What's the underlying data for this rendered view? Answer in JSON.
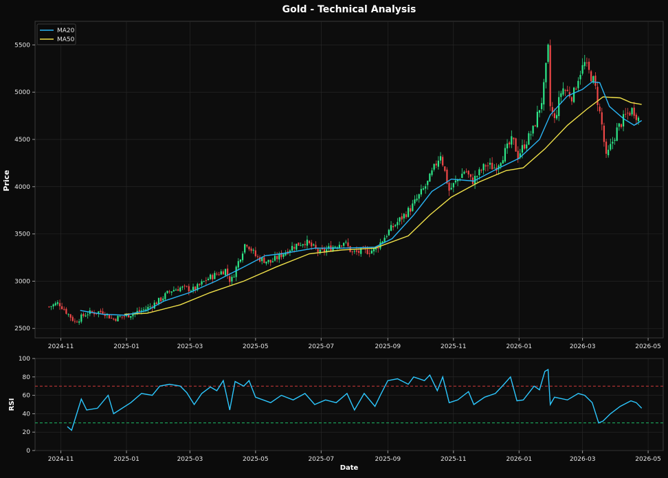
{
  "title": "Gold - Technical Analysis",
  "colors": {
    "background": "#0b0b0b",
    "grid": "#2a2a2a",
    "text": "#e6e6e6",
    "up": "#2ee889",
    "down": "#f04848",
    "ma20": "#29b6f6",
    "ma50": "#f1e24a",
    "rsi": "#2dc8ff",
    "overbought": "#d23a3a",
    "oversold": "#1fbf6a"
  },
  "chart_data": [
    {
      "type": "candlestick",
      "title": "Gold - Technical Analysis",
      "ylabel": "Price",
      "xlabel": "",
      "ylim": [
        2400,
        5750
      ],
      "yticks": [
        2500,
        3000,
        3500,
        4000,
        4500,
        5000,
        5500
      ],
      "xticks": [
        "2024-11",
        "2025-01",
        "2025-03",
        "2025-05",
        "2025-07",
        "2025-09",
        "2025-11",
        "2026-01",
        "2026-03",
        "2026-05"
      ],
      "x_range": [
        "2024-10-08",
        "2026-05-15"
      ],
      "grid": true,
      "legend": {
        "position": "top-left",
        "entries": [
          "MA20",
          "MA50"
        ]
      },
      "price_path": [
        [
          "2024-10-21",
          2730
        ],
        [
          "2024-10-30",
          2770
        ],
        [
          "2024-11-08",
          2650
        ],
        [
          "2024-11-14",
          2570
        ],
        [
          "2024-11-25",
          2660
        ],
        [
          "2024-12-10",
          2680
        ],
        [
          "2024-12-19",
          2600
        ],
        [
          "2025-01-02",
          2640
        ],
        [
          "2025-01-20",
          2710
        ],
        [
          "2025-02-01",
          2800
        ],
        [
          "2025-02-11",
          2900
        ],
        [
          "2025-02-20",
          2930
        ],
        [
          "2025-03-05",
          2910
        ],
        [
          "2025-03-18",
          3030
        ],
        [
          "2025-04-03",
          3120
        ],
        [
          "2025-04-08",
          2990
        ],
        [
          "2025-04-22",
          3420
        ],
        [
          "2025-05-02",
          3250
        ],
        [
          "2025-05-15",
          3200
        ],
        [
          "2025-06-05",
          3370
        ],
        [
          "2025-06-16",
          3420
        ],
        [
          "2025-06-30",
          3300
        ],
        [
          "2025-07-22",
          3420
        ],
        [
          "2025-07-30",
          3300
        ],
        [
          "2025-08-20",
          3330
        ],
        [
          "2025-09-02",
          3530
        ],
        [
          "2025-09-23",
          3780
        ],
        [
          "2025-10-08",
          4040
        ],
        [
          "2025-10-20",
          4350
        ],
        [
          "2025-10-28",
          3960
        ],
        [
          "2025-11-12",
          4180
        ],
        [
          "2025-11-18",
          4050
        ],
        [
          "2025-12-01",
          4230
        ],
        [
          "2025-12-10",
          4200
        ],
        [
          "2025-12-26",
          4500
        ],
        [
          "2025-12-31",
          4330
        ],
        [
          "2026-01-14",
          4600
        ],
        [
          "2026-01-23",
          4950
        ],
        [
          "2026-01-28",
          5450
        ],
        [
          "2026-01-30",
          4850
        ],
        [
          "2026-02-03",
          4700
        ],
        [
          "2026-02-10",
          5050
        ],
        [
          "2026-02-20",
          4950
        ],
        [
          "2026-02-26",
          5200
        ],
        [
          "2026-03-03",
          5300
        ],
        [
          "2026-03-12",
          5100
        ],
        [
          "2026-03-19",
          4650
        ],
        [
          "2026-03-23",
          4300
        ],
        [
          "2026-04-02",
          4600
        ],
        [
          "2026-04-10",
          4750
        ],
        [
          "2026-04-17",
          4820
        ],
        [
          "2026-04-23",
          4700
        ]
      ],
      "ma20": [
        [
          "2024-11-19",
          2690
        ],
        [
          "2024-12-10",
          2650
        ],
        [
          "2024-12-31",
          2640
        ],
        [
          "2025-01-20",
          2690
        ],
        [
          "2025-02-05",
          2790
        ],
        [
          "2025-03-01",
          2880
        ],
        [
          "2025-03-25",
          3000
        ],
        [
          "2025-04-20",
          3150
        ],
        [
          "2025-05-10",
          3270
        ],
        [
          "2025-05-25",
          3290
        ],
        [
          "2025-06-25",
          3350
        ],
        [
          "2025-07-20",
          3350
        ],
        [
          "2025-08-20",
          3360
        ],
        [
          "2025-09-05",
          3450
        ],
        [
          "2025-09-25",
          3700
        ],
        [
          "2025-10-12",
          3950
        ],
        [
          "2025-10-30",
          4080
        ],
        [
          "2025-11-20",
          4060
        ],
        [
          "2025-12-10",
          4180
        ],
        [
          "2026-01-01",
          4300
        ],
        [
          "2026-01-20",
          4500
        ],
        [
          "2026-01-30",
          4760
        ],
        [
          "2026-02-15",
          4960
        ],
        [
          "2026-03-01",
          5030
        ],
        [
          "2026-03-10",
          5110
        ],
        [
          "2026-03-17",
          5100
        ],
        [
          "2026-03-26",
          4850
        ],
        [
          "2026-04-08",
          4720
        ],
        [
          "2026-04-18",
          4650
        ],
        [
          "2026-04-25",
          4700
        ]
      ],
      "ma50": [
        [
          "2024-12-30",
          2650
        ],
        [
          "2025-01-20",
          2660
        ],
        [
          "2025-02-20",
          2750
        ],
        [
          "2025-03-20",
          2880
        ],
        [
          "2025-04-20",
          3000
        ],
        [
          "2025-05-20",
          3150
        ],
        [
          "2025-06-20",
          3290
        ],
        [
          "2025-07-20",
          3330
        ],
        [
          "2025-08-20",
          3350
        ],
        [
          "2025-09-20",
          3480
        ],
        [
          "2025-10-10",
          3700
        ],
        [
          "2025-10-30",
          3890
        ],
        [
          "2025-11-25",
          4050
        ],
        [
          "2025-12-20",
          4170
        ],
        [
          "2026-01-05",
          4200
        ],
        [
          "2026-01-25",
          4400
        ],
        [
          "2026-02-15",
          4650
        ],
        [
          "2026-03-05",
          4820
        ],
        [
          "2026-03-20",
          4950
        ],
        [
          "2026-04-05",
          4940
        ],
        [
          "2026-04-15",
          4890
        ],
        [
          "2026-04-25",
          4870
        ]
      ]
    },
    {
      "type": "line",
      "title": "",
      "xlabel": "Date",
      "ylabel": "RSI",
      "ylim": [
        0,
        100
      ],
      "yticks": [
        0,
        20,
        40,
        60,
        80,
        100
      ],
      "xticks": [
        "2024-11",
        "2025-01",
        "2025-03",
        "2025-05",
        "2025-07",
        "2025-09",
        "2025-11",
        "2026-01",
        "2026-03",
        "2026-05"
      ],
      "x_range": [
        "2024-10-08",
        "2026-05-15"
      ],
      "reference_lines": [
        70,
        30
      ],
      "grid": true,
      "series": [
        {
          "values": [
            [
              "2024-11-07",
              26
            ],
            [
              "2024-11-11",
              22
            ],
            [
              "2024-11-20",
              56
            ],
            [
              "2024-11-25",
              44
            ],
            [
              "2024-12-05",
              46
            ],
            [
              "2024-12-15",
              60
            ],
            [
              "2024-12-20",
              40
            ],
            [
              "2025-01-05",
              52
            ],
            [
              "2025-01-15",
              62
            ],
            [
              "2025-01-25",
              60
            ],
            [
              "2025-02-01",
              70
            ],
            [
              "2025-02-10",
              72
            ],
            [
              "2025-02-20",
              70
            ],
            [
              "2025-02-26",
              63
            ],
            [
              "2025-03-05",
              50
            ],
            [
              "2025-03-12",
              62
            ],
            [
              "2025-03-20",
              69
            ],
            [
              "2025-03-26",
              65
            ],
            [
              "2025-04-01",
              76
            ],
            [
              "2025-04-07",
              44
            ],
            [
              "2025-04-12",
              75
            ],
            [
              "2025-04-20",
              70
            ],
            [
              "2025-04-25",
              76
            ],
            [
              "2025-05-01",
              58
            ],
            [
              "2025-05-15",
              52
            ],
            [
              "2025-05-25",
              60
            ],
            [
              "2025-06-05",
              55
            ],
            [
              "2025-06-16",
              62
            ],
            [
              "2025-06-25",
              50
            ],
            [
              "2025-07-05",
              55
            ],
            [
              "2025-07-15",
              52
            ],
            [
              "2025-07-25",
              62
            ],
            [
              "2025-08-01",
              44
            ],
            [
              "2025-08-10",
              62
            ],
            [
              "2025-08-20",
              48
            ],
            [
              "2025-08-25",
              60
            ],
            [
              "2025-09-01",
              76
            ],
            [
              "2025-09-10",
              78
            ],
            [
              "2025-09-20",
              72
            ],
            [
              "2025-09-25",
              80
            ],
            [
              "2025-10-05",
              76
            ],
            [
              "2025-10-10",
              82
            ],
            [
              "2025-10-17",
              65
            ],
            [
              "2025-10-22",
              80
            ],
            [
              "2025-10-28",
              52
            ],
            [
              "2025-11-05",
              55
            ],
            [
              "2025-11-15",
              64
            ],
            [
              "2025-11-20",
              50
            ],
            [
              "2025-11-30",
              58
            ],
            [
              "2025-12-10",
              62
            ],
            [
              "2025-12-18",
              72
            ],
            [
              "2025-12-24",
              80
            ],
            [
              "2025-12-30",
              54
            ],
            [
              "2026-01-05",
              55
            ],
            [
              "2026-01-15",
              70
            ],
            [
              "2026-01-20",
              66
            ],
            [
              "2026-01-25",
              86
            ],
            [
              "2026-01-28",
              88
            ],
            [
              "2026-01-30",
              50
            ],
            [
              "2026-02-03",
              58
            ],
            [
              "2026-02-15",
              55
            ],
            [
              "2026-02-25",
              62
            ],
            [
              "2026-03-03",
              60
            ],
            [
              "2026-03-10",
              52
            ],
            [
              "2026-03-16",
              30
            ],
            [
              "2026-03-20",
              32
            ],
            [
              "2026-03-27",
              40
            ],
            [
              "2026-04-05",
              48
            ],
            [
              "2026-04-15",
              54
            ],
            [
              "2026-04-20",
              52
            ],
            [
              "2026-04-25",
              46
            ]
          ]
        }
      ]
    }
  ]
}
